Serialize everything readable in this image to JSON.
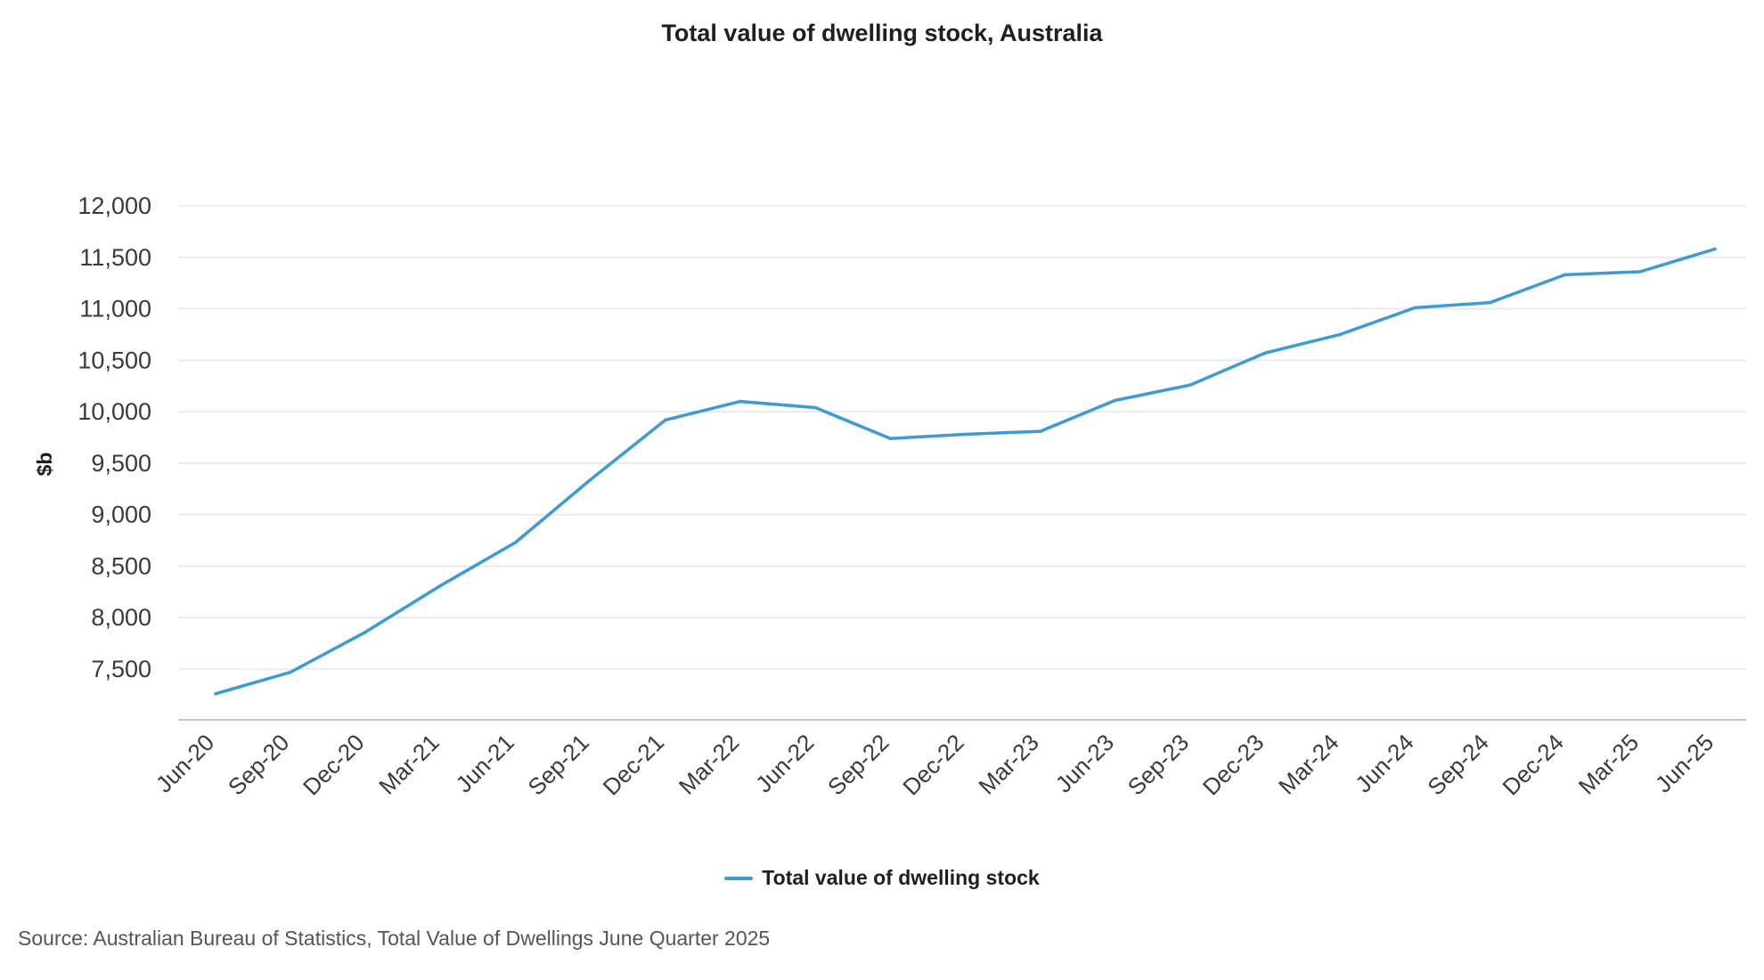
{
  "chart_data": {
    "type": "line",
    "title": "Total value of dwelling stock, Australia",
    "xlabel": "",
    "ylabel": "$b",
    "ylim": [
      7050,
      12000
    ],
    "y_ticks": [
      7500,
      8000,
      8500,
      9000,
      9500,
      10000,
      10500,
      11000,
      11500,
      12000
    ],
    "y_tick_labels": [
      "7,500",
      "8,000",
      "8,500",
      "9,000",
      "9,500",
      "10,000",
      "10,500",
      "11,000",
      "11,500",
      "12,000"
    ],
    "grid": true,
    "legend_position": "bottom",
    "categories": [
      "Jun-20",
      "Sep-20",
      "Dec-20",
      "Mar-21",
      "Jun-21",
      "Sep-21",
      "Dec-21",
      "Mar-22",
      "Jun-22",
      "Sep-22",
      "Dec-22",
      "Mar-23",
      "Jun-23",
      "Sep-23",
      "Dec-23",
      "Mar-24",
      "Jun-24",
      "Sep-24",
      "Dec-24",
      "Mar-25",
      "Jun-25"
    ],
    "series": [
      {
        "name": "Total value of dwelling stock",
        "color": "#3d9bd3",
        "values": [
          7260,
          7470,
          7860,
          8310,
          8730,
          9340,
          9920,
          10100,
          10040,
          9740,
          9780,
          9810,
          10110,
          10260,
          10570,
          10750,
          11010,
          11060,
          11330,
          11360,
          11580
        ]
      }
    ]
  },
  "source": "Source: Australian Bureau of Statistics, Total Value of Dwellings June Quarter 2025"
}
